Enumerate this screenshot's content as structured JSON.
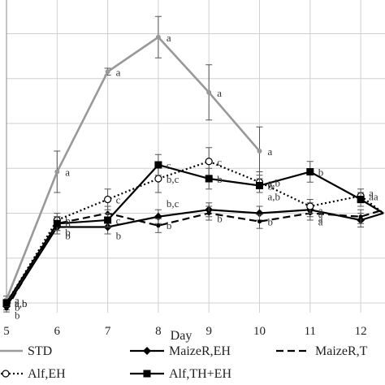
{
  "chart_data": {
    "type": "line",
    "title": "",
    "xlabel": "Day",
    "ylabel": "",
    "x": [
      5,
      6,
      7,
      8,
      9,
      10,
      11,
      12
    ],
    "x_tick_labels": [
      "5",
      "6",
      "7",
      "8",
      "9",
      "10",
      "11",
      "12"
    ],
    "xlim": [
      5,
      12.45
    ],
    "ylim": [
      -0.3,
      4.1
    ],
    "grid": true,
    "legend_position": "bottom",
    "series": [
      {
        "name": "STD",
        "color": "#999999",
        "style": "solid-gray",
        "x": [
          5,
          6,
          7,
          8,
          9,
          10
        ],
        "y": [
          0.05,
          1.9,
          3.35,
          3.85,
          3.05,
          2.2
        ],
        "err": [
          0.05,
          0.3,
          0.05,
          0.3,
          0.4,
          0.35
        ],
        "labels": [
          "a",
          "a",
          "a",
          "a",
          "a",
          "a"
        ]
      },
      {
        "name": "MaizeR,EH",
        "color": "#000000",
        "style": "solid-diamond",
        "x": [
          5,
          6,
          7,
          8,
          9,
          10,
          11,
          12,
          12.45
        ],
        "y": [
          -0.05,
          1.1,
          1.1,
          1.25,
          1.35,
          1.3,
          1.35,
          1.2,
          1.3
        ],
        "err": [
          0.05,
          0.1,
          0.1,
          0.1,
          0.1,
          0.1,
          0.1,
          0.1,
          0
        ],
        "labels": [
          "b",
          "b",
          "b",
          "b",
          "b",
          "b",
          "a",
          "",
          ""
        ]
      },
      {
        "name": "MaizeR,T",
        "color": "#000000",
        "style": "dashed",
        "x": [
          5,
          6,
          7,
          8,
          9,
          10,
          11,
          12,
          12.45
        ],
        "y": [
          -0.08,
          1.15,
          1.3,
          1.12,
          1.3,
          1.18,
          1.3,
          1.25,
          1.35
        ],
        "err": [
          0.05,
          0.1,
          0.1,
          0.1,
          0.1,
          0.1,
          0.1,
          0.1,
          0
        ],
        "labels": [
          "",
          "b",
          "",
          "",
          "",
          "",
          "a",
          "",
          ""
        ]
      },
      {
        "name": "Alf,EH",
        "color": "#000000",
        "style": "dotted-open-circle",
        "x": [
          5,
          6,
          7,
          8,
          9,
          10,
          11,
          12,
          12.45
        ],
        "y": [
          0.0,
          1.2,
          1.5,
          1.8,
          2.05,
          1.75,
          1.4,
          1.55,
          1.3
        ],
        "err": [
          0.05,
          0.1,
          0.15,
          0.2,
          0.2,
          0.15,
          0.1,
          0.1,
          0
        ],
        "labels": [
          "a,b",
          "b",
          "c",
          "b,c",
          "c",
          "a,b",
          "",
          "aa",
          ""
        ]
      },
      {
        "name": "Alf,TH+EH",
        "color": "#000000",
        "style": "solid-square",
        "x": [
          5,
          6,
          7,
          8,
          9,
          10,
          11,
          12,
          12.45
        ],
        "y": [
          0.0,
          1.15,
          1.2,
          2.0,
          1.8,
          1.7,
          1.9,
          1.5,
          1.3
        ],
        "err": [
          0.05,
          0.1,
          0.1,
          0.15,
          0.15,
          0.1,
          0.15,
          0.1,
          0
        ],
        "labels": [
          "a,b",
          "b",
          "c",
          "c",
          "b",
          "b",
          "b",
          "",
          ""
        ]
      }
    ],
    "extra_annotations": [
      {
        "x": 5,
        "y": -0.05,
        "text": "b"
      },
      {
        "x": 8,
        "y": 1.45,
        "text": "b,c"
      },
      {
        "x": 10,
        "y": 1.55,
        "text": "a,b"
      },
      {
        "x": 11,
        "y": 1.35,
        "text": "a"
      },
      {
        "x": 12,
        "y": 1.6,
        "text": "a"
      },
      {
        "x": 11,
        "y": 1.3,
        "text": "a"
      }
    ]
  },
  "legend": [
    {
      "label": "STD",
      "style": "solid-gray"
    },
    {
      "label": "MaizeR,EH",
      "style": "solid-diamond"
    },
    {
      "label": "MaizeR,T",
      "style": "dashed"
    },
    {
      "label": "Alf,EH",
      "style": "dotted-open-circle"
    },
    {
      "label": "Alf,TH+EH",
      "style": "solid-square"
    }
  ]
}
